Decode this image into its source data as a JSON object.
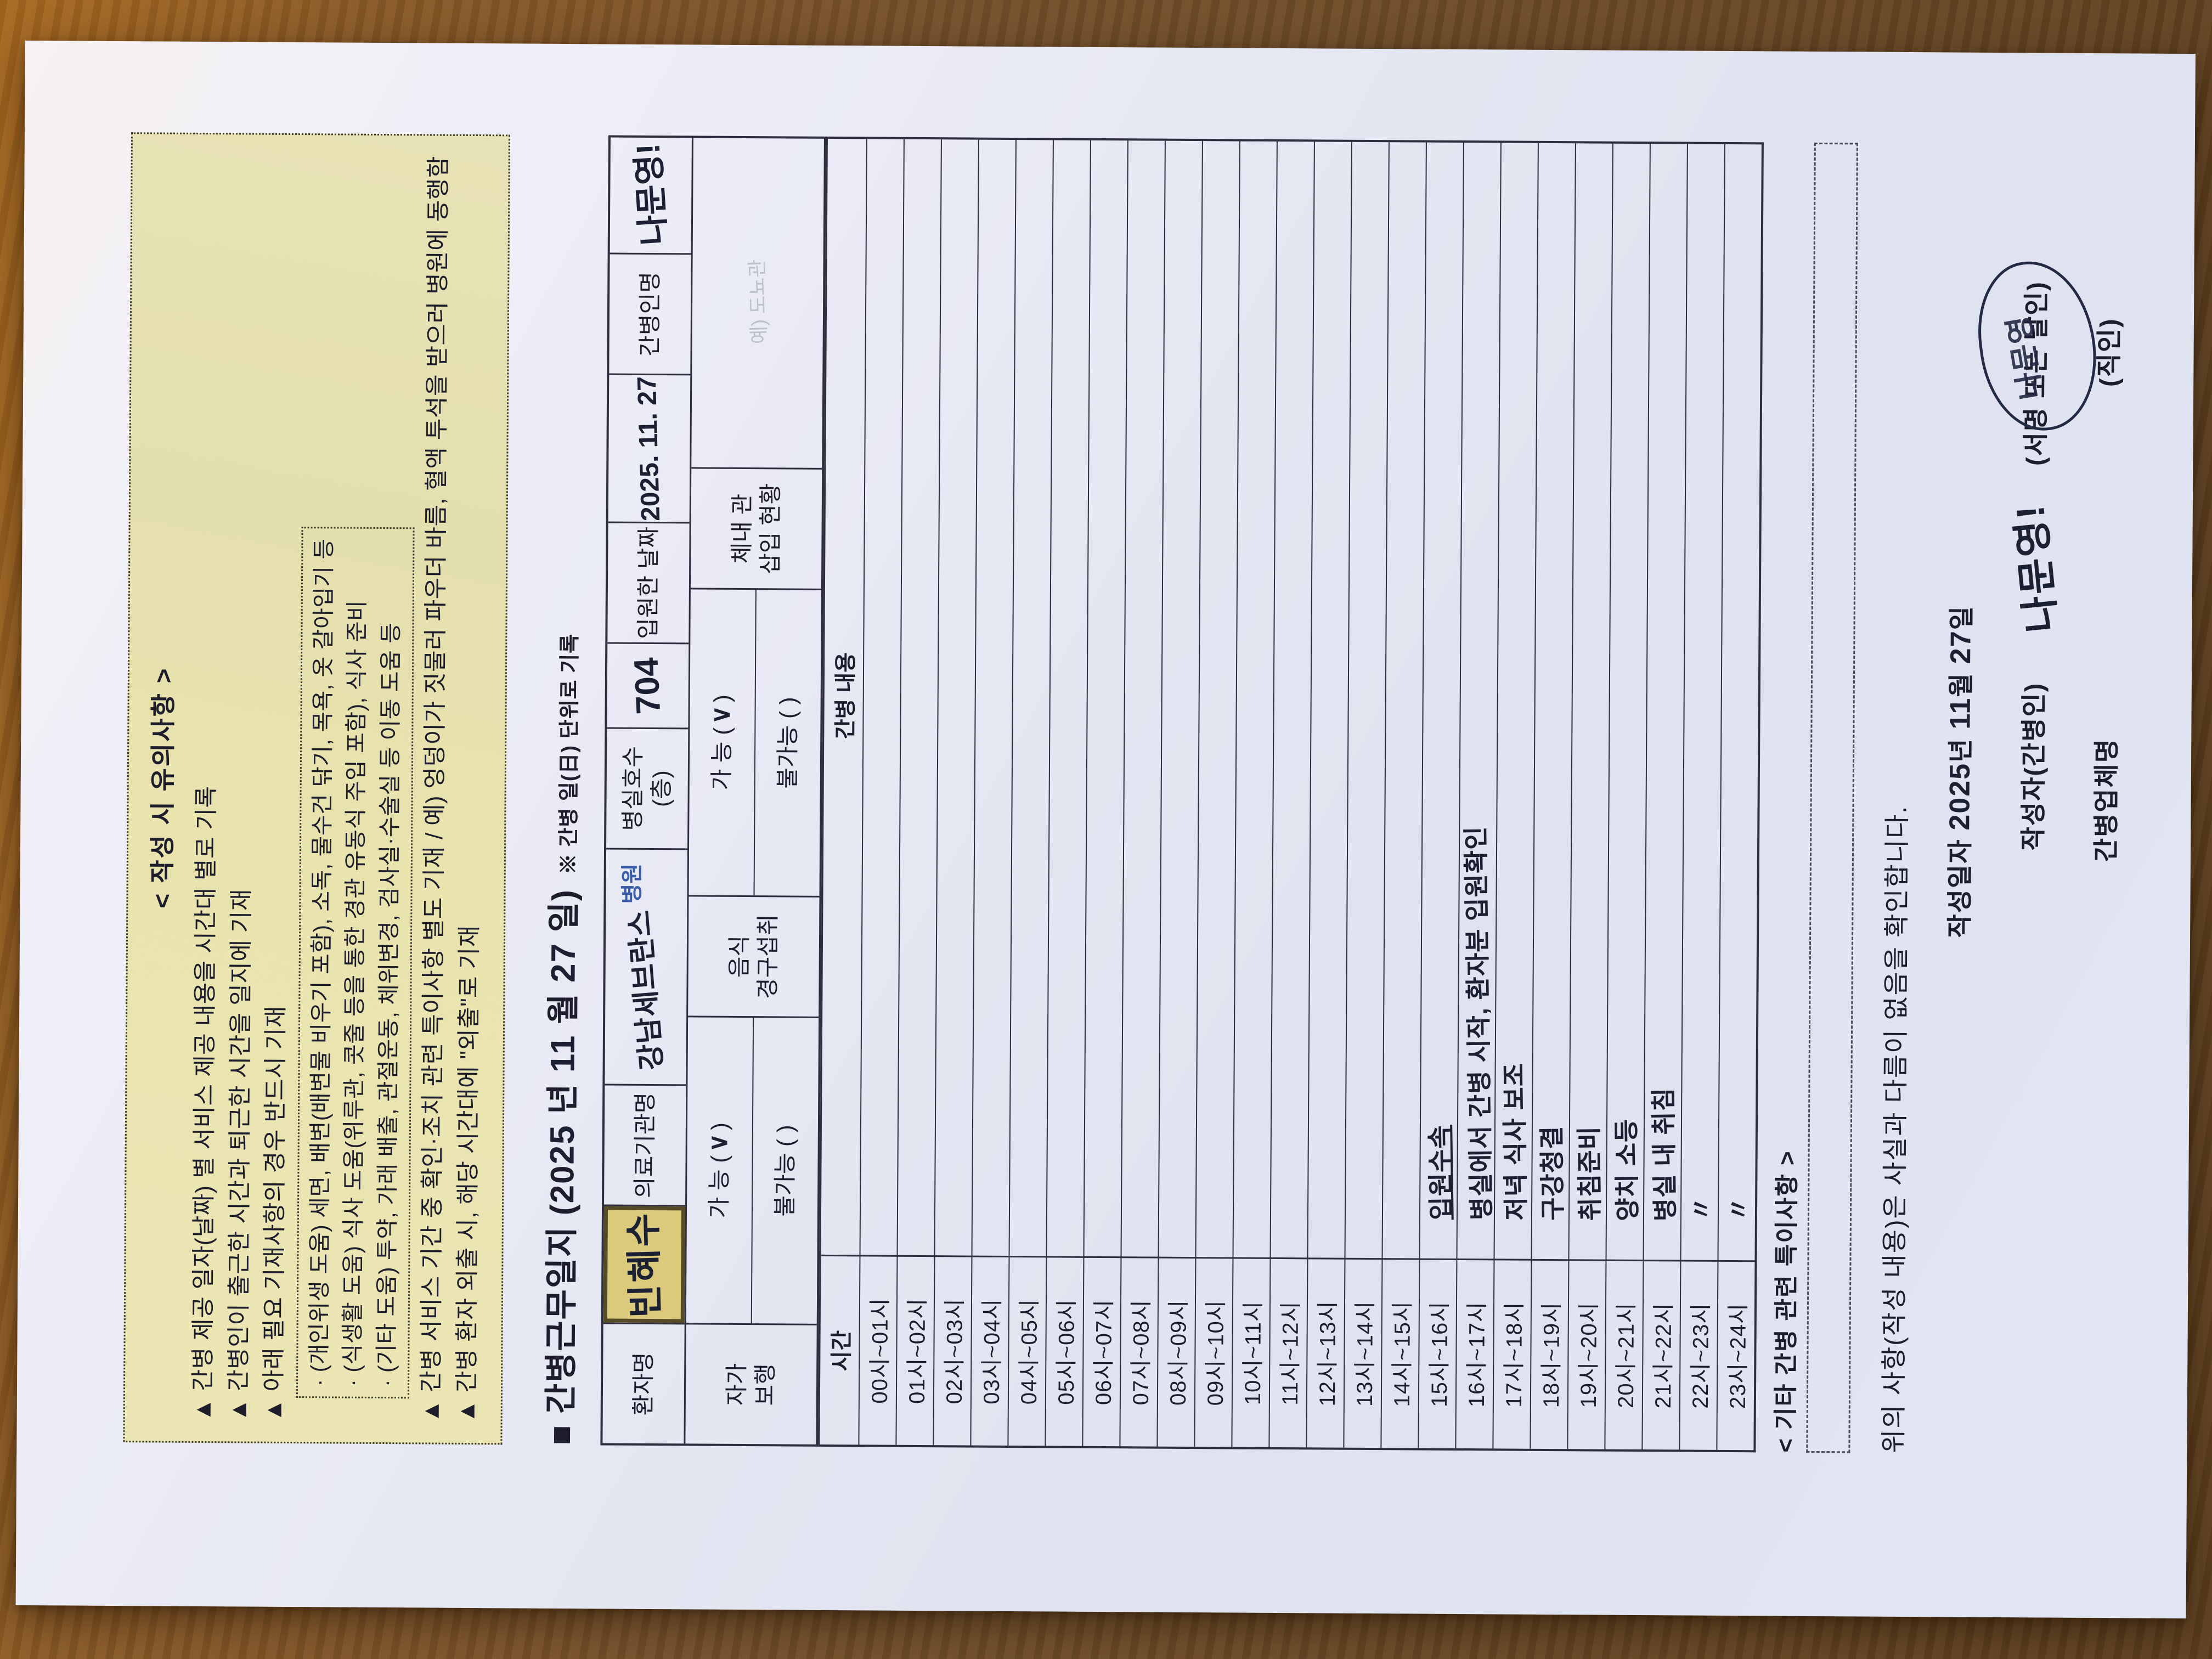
{
  "notice": {
    "title": "< 작성 시 유의사항 >",
    "items": [
      "▲  간병 제공 일자(날짜) 별 서비스 제공 내용을 시간대 별로 기록",
      "▲  간병인이 출근한 시간과 퇴근한 시간을 일지에 기재",
      "▲  아래 필요 기재사항의 경우 반드시 기재"
    ],
    "sub_items": [
      "· (개인위생 도움) 세면, 배변(배변물 비우기 포함), 소독, 물수건 닦기, 목욕, 옷 갈아입기 등",
      "· (식생활 도움) 식사 도움(위루관, 콧줄 등을 통한 경관 유동식 주입 포함), 식사 준비",
      "· (기타 도움) 투약, 가래 배출, 관절운동, 체위변경, 검사실·수술실 등 이동 도움 등"
    ],
    "items2": [
      "▲  간병 서비스 기간 중 확인·조치 관련 특이사항 별도 기재 / 예) 엉덩이가 짓물러 파우더 바름, 혈액 투석을 받으러 병원에 동행함",
      "▲  간병 환자 외출 시, 해당 시간대에 \"외출\"로 기재"
    ]
  },
  "title": {
    "prefix": "■ 간병근무일지 (20",
    "year_hand": "25",
    "seg_year": " 년  ",
    "month_hand": "11",
    "seg_month": " 월  ",
    "day_hand": "27",
    "seg_day": " 일)",
    "note": "※ 간병 일(日) 단위로 기록"
  },
  "info": {
    "h_patient": "환자명",
    "v_patient": "빈혜수",
    "h_hospital": "의료기관명",
    "v_hospital": "강남세브란스",
    "v_hospital_suffix": "병원",
    "h_room": "병실호수(층)",
    "v_room": "704",
    "h_admit": "입원한 날짜",
    "v_admit": "2025. 11. 27",
    "h_carer": "간병인명",
    "v_carer": "나문영!",
    "mobility_l1": "자가",
    "mobility_l2": "보행",
    "diet_l1": "음식",
    "diet_l2": "경구섭취",
    "possible_label": "가 능 (",
    "possible_check": "∨",
    "paren_close": ")",
    "impossible_label": "불가능 (      )",
    "cath_l1": "체내 관",
    "cath_l2": "삽입 현황",
    "cath_example": "예) 도뇨관"
  },
  "schedule": {
    "time_header": "시간",
    "content_header": "간병 내용",
    "rows": [
      {
        "time": "00시~01시",
        "note": ""
      },
      {
        "time": "01시~02시",
        "note": ""
      },
      {
        "time": "02시~03시",
        "note": ""
      },
      {
        "time": "03시~04시",
        "note": ""
      },
      {
        "time": "04시~05시",
        "note": ""
      },
      {
        "time": "05시~06시",
        "note": ""
      },
      {
        "time": "06시~07시",
        "note": ""
      },
      {
        "time": "07시~08시",
        "note": ""
      },
      {
        "time": "08시~09시",
        "note": ""
      },
      {
        "time": "09시~10시",
        "note": ""
      },
      {
        "time": "10시~11시",
        "note": ""
      },
      {
        "time": "11시~12시",
        "note": ""
      },
      {
        "time": "12시~13시",
        "note": ""
      },
      {
        "time": "13시~14시",
        "note": ""
      },
      {
        "time": "14시~15시",
        "note": ""
      },
      {
        "time": "15시~16시",
        "note": "입원수속",
        "u": true
      },
      {
        "time": "16시~17시",
        "note": "병실에서 간병 시작, 환자분 입원확인"
      },
      {
        "time": "17시~18시",
        "note": "저녁 식사 보조"
      },
      {
        "time": "18시~19시",
        "note": "구강청결"
      },
      {
        "time": "19시~20시",
        "note": "취침준비"
      },
      {
        "time": "20시~21시",
        "note": "양치 소등"
      },
      {
        "time": "21시~22시",
        "note": "병실 내 취침"
      },
      {
        "time": "22시~23시",
        "note": "〃"
      },
      {
        "time": "23시~24시",
        "note": "〃"
      }
    ]
  },
  "etc": {
    "header": "< 기타 간병 관련 특이사항 >"
  },
  "footer": {
    "statement": "위의 사항(작성 내용)은  사실과  다름이  없음을  확인합니다.",
    "date_label": "작성일자 ",
    "date_year_hand": "2025",
    "date_year_suffix": "년 ",
    "date_month_hand": "11",
    "date_month_suffix": "월 ",
    "date_day_hand": "27",
    "date_day_suffix": "일",
    "writer_label": "작성자(간병인)",
    "writer_sign": "나문영!",
    "sign_paren": "(서명 또는 날인)",
    "circle_scribble": "나문영",
    "company_label": "간병업체명",
    "seal_note": "(직인)"
  }
}
